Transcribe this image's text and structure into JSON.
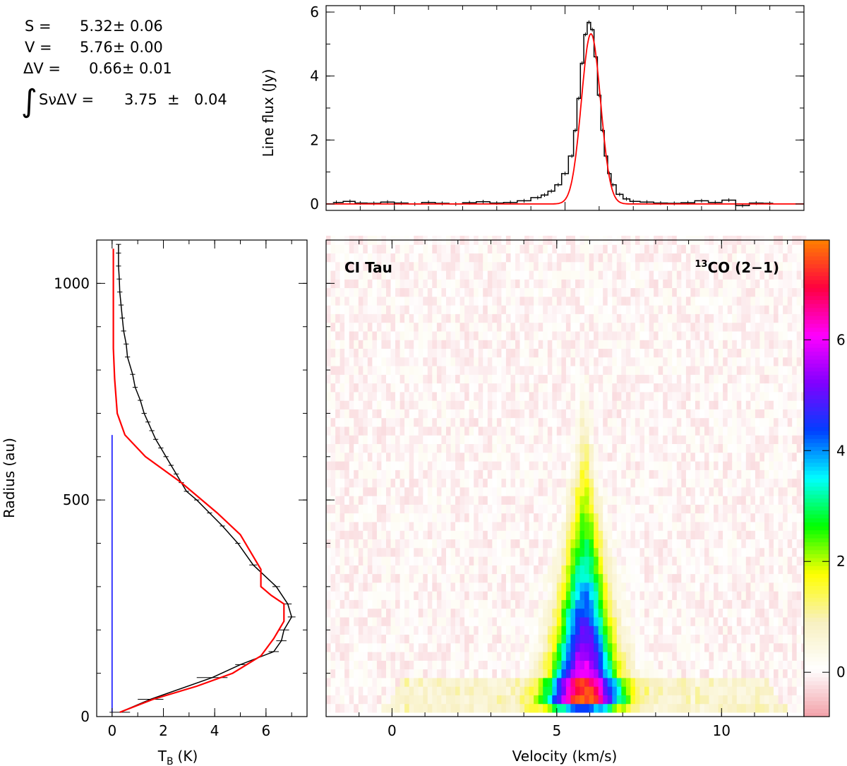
{
  "fit_results": {
    "s_label": "S =",
    "s_value": "5.32± 0.06",
    "v_label": "V =",
    "v_value": "5.76± 0.00",
    "dv_label": "ΔV =",
    "dv_value": "0.66± 0.01",
    "int_symbol": "∫",
    "int_label": "SνΔV =",
    "int_value": "3.75",
    "int_pm": "±",
    "int_err": "0.04"
  },
  "colors": {
    "data": "#000000",
    "model": "#ff0000",
    "reference": "#0000ff"
  },
  "chart_data": [
    {
      "id": "spectrum",
      "type": "line",
      "title": "",
      "xlabel": "",
      "ylabel": "Line flux (Jy)",
      "xlim": [
        -2,
        12
      ],
      "ylim": [
        -0.2,
        6.2
      ],
      "yticks": [
        0,
        2,
        4,
        6
      ],
      "xticks": [
        0,
        5,
        10
      ],
      "grid": false,
      "series": [
        {
          "role": "observed",
          "style": "step-with-errorbars",
          "color": "#000000",
          "x": [
            -1.7,
            -1.3,
            -1.0,
            -0.6,
            -0.2,
            0.2,
            0.6,
            1.0,
            1.4,
            1.8,
            2.2,
            2.6,
            3.0,
            3.4,
            3.8,
            4.2,
            4.4,
            4.6,
            4.8,
            5.0,
            5.2,
            5.3,
            5.4,
            5.5,
            5.6,
            5.7,
            5.8,
            5.9,
            6.0,
            6.1,
            6.2,
            6.3,
            6.4,
            6.6,
            6.8,
            7.0,
            7.4,
            7.8,
            8.2,
            8.6,
            9.0,
            9.4,
            9.8,
            10.2,
            10.6,
            11.0
          ],
          "y": [
            0.05,
            0.08,
            0.03,
            0.02,
            0.06,
            0.03,
            0.0,
            0.05,
            0.02,
            0.0,
            0.04,
            0.07,
            0.03,
            0.05,
            0.1,
            0.2,
            0.28,
            0.4,
            0.6,
            0.95,
            1.5,
            2.3,
            3.3,
            4.4,
            5.3,
            5.68,
            5.45,
            4.6,
            3.4,
            2.3,
            1.5,
            0.95,
            0.6,
            0.3,
            0.16,
            0.08,
            0.06,
            0.03,
            0.02,
            0.04,
            0.1,
            0.05,
            0.12,
            -0.05,
            0.03,
            0.02
          ],
          "err": 0.06
        },
        {
          "role": "gaussian-fit",
          "style": "line",
          "color": "#ff0000",
          "amplitude": 5.32,
          "center": 5.76,
          "fwhm": 0.66,
          "x_range": [
            -2,
            12
          ]
        }
      ]
    },
    {
      "id": "radial-profile",
      "type": "line",
      "title": "",
      "xlabel": "T",
      "xlabel_sub": "B",
      "xlabel_unit": "(K)",
      "ylabel": "Radius (au)",
      "xlim": [
        -0.6,
        7.6
      ],
      "ylim": [
        0,
        1100
      ],
      "xticks": [
        0,
        2,
        4,
        6
      ],
      "yticks": [
        0,
        500,
        1000
      ],
      "series": [
        {
          "role": "observed",
          "color": "#000000",
          "T": [
            0.3,
            1.5,
            3.9,
            5.0,
            6.3,
            6.6,
            6.7,
            7.0,
            6.85,
            6.4,
            5.5,
            4.9,
            4.3,
            3.8,
            3.3,
            2.9,
            2.7,
            2.5,
            2.3,
            2.1,
            1.9,
            1.7,
            1.55,
            1.4,
            1.25,
            1.1,
            0.9,
            0.8,
            0.6,
            0.55,
            0.45,
            0.4,
            0.35,
            0.3,
            0.28,
            0.25,
            0.25,
            0.25
          ],
          "R": [
            10,
            40,
            90,
            120,
            150,
            175,
            200,
            230,
            260,
            300,
            350,
            400,
            440,
            470,
            500,
            520,
            540,
            560,
            580,
            600,
            620,
            640,
            660,
            680,
            700,
            730,
            760,
            790,
            830,
            860,
            890,
            920,
            950,
            980,
            1010,
            1040,
            1070,
            1090
          ],
          "Terr": [
            0.4,
            0.5,
            0.6,
            0.2,
            0.2,
            0.2,
            0.2,
            0.15,
            0.15,
            0.15,
            0.15,
            0.1,
            0.1,
            0.1,
            0.1,
            0.1,
            0.1,
            0.1,
            0.1,
            0.1,
            0.1,
            0.1,
            0.1,
            0.1,
            0.1,
            0.1,
            0.1,
            0.1,
            0.1,
            0.1,
            0.1,
            0.1,
            0.1,
            0.1,
            0.1,
            0.1,
            0.1,
            0.1
          ]
        },
        {
          "role": "model",
          "color": "#ff0000",
          "T": [
            0.3,
            1.6,
            3.3,
            4.7,
            5.8,
            6.3,
            6.7,
            6.7,
            6.2,
            5.8,
            5.8,
            5.0,
            4.1,
            2.7,
            1.3,
            0.5,
            0.2,
            0.1,
            0.05,
            0.05,
            0.05
          ],
          "R": [
            10,
            40,
            70,
            100,
            140,
            180,
            220,
            260,
            280,
            300,
            340,
            420,
            470,
            540,
            600,
            650,
            700,
            780,
            850,
            950,
            1080
          ]
        },
        {
          "role": "reference",
          "color": "#0000ff",
          "T": [
            0.0,
            0.0
          ],
          "R": [
            10,
            650
          ]
        }
      ]
    },
    {
      "id": "pv-diagram",
      "type": "heatmap",
      "title": "",
      "left_label": "CI Tau",
      "right_label_sup": "13",
      "right_label": "CO (2−1)",
      "xlabel": "Velocity (km/s)",
      "ylabel": "",
      "xlim": [
        -2,
        12.5
      ],
      "ylim": [
        0,
        1100
      ],
      "xticks": [
        0,
        5,
        10
      ],
      "yticks": [
        0,
        500,
        1000
      ],
      "peak_velocity": 5.76,
      "peak_radius": 190,
      "peak_value": 7.2,
      "colorbar": {
        "range": [
          -0.8,
          7.8
        ],
        "ticks": [
          0,
          2,
          4,
          6
        ],
        "tick_labels": [
          "0",
          "2",
          "4",
          "6"
        ],
        "colormap": [
          "#f2a0a8",
          "#ffffff",
          "#f8f0c0",
          "#ffff00",
          "#00ff00",
          "#00ffff",
          "#0040ff",
          "#8000ff",
          "#ff00ff",
          "#ff0040",
          "#ff8000"
        ]
      }
    }
  ]
}
